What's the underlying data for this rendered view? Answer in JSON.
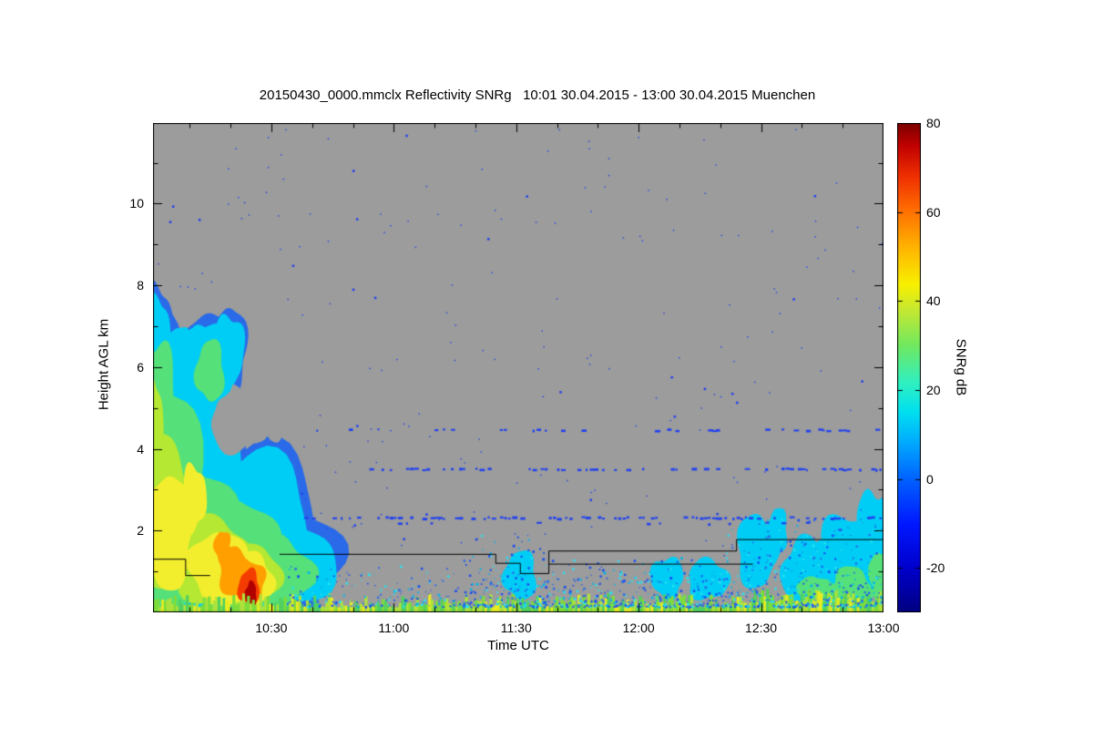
{
  "page": {
    "background": "#ffffff"
  },
  "chart_data": {
    "type": "heatmap",
    "title": "20150430_0000.mmclx Reflectivity SNRg   10:01 30.04.2015 - 13:00 30.04.2015 Muenchen",
    "xlabel": "Time UTC",
    "ylabel": "Height AGL km",
    "plot_bg": "#9c9c9c",
    "x_axis": {
      "start_time": "10:01",
      "end_time": "13:00",
      "tick_labels": [
        "10:30",
        "11:00",
        "11:30",
        "12:00",
        "12:30",
        "13:00"
      ],
      "tick_minutes": [
        29,
        59,
        89,
        119,
        149,
        179
      ],
      "minor_step_min": 10,
      "range_min": [
        0,
        179
      ]
    },
    "y_axis": {
      "tick_values": [
        2,
        4,
        6,
        8,
        10
      ],
      "minor_values": [
        1,
        3,
        5,
        7,
        9,
        11
      ],
      "range_km": [
        0,
        11.97
      ]
    },
    "colorbar": {
      "title": "SNRg dB",
      "tick_values": [
        80,
        60,
        40,
        20,
        0,
        -20
      ],
      "range": [
        -30,
        80
      ],
      "stops": [
        [
          "#000080",
          0
        ],
        [
          "#0000cc",
          0.09
        ],
        [
          "#0018ff",
          0.18
        ],
        [
          "#0060ff",
          0.27
        ],
        [
          "#00a8ff",
          0.345
        ],
        [
          "#00e0f0",
          0.41
        ],
        [
          "#30f0c0",
          0.47
        ],
        [
          "#70e860",
          0.545
        ],
        [
          "#c8e830",
          0.62
        ],
        [
          "#f8f000",
          0.67
        ],
        [
          "#ffb400",
          0.745
        ],
        [
          "#ff7000",
          0.82
        ],
        [
          "#f03000",
          0.89
        ],
        [
          "#c00000",
          0.955
        ],
        [
          "#7a0000",
          1
        ]
      ]
    },
    "features": {
      "seed": 1337,
      "paint": [
        {
          "color": "#2a6ae8",
          "blobs": [
            [
              0,
              3.6,
              15,
              3.9
            ],
            [
              6,
              2.6,
              19,
              2.8
            ],
            [
              10,
              1.6,
              13,
              1.8
            ],
            [
              14,
              5.9,
              7.5,
              1.5
            ],
            [
              18.5,
              6.4,
              4.5,
              1.1
            ],
            [
              23,
              2.0,
              17,
              2.2
            ],
            [
              31,
              1.2,
              15,
              1.4
            ],
            [
              1,
              6.8,
              4,
              1.2
            ]
          ]
        },
        {
          "color": "#00cdf5",
          "blobs": [
            [
              0,
              3.6,
              13.5,
              3.6
            ],
            [
              6,
              2.6,
              17.5,
              2.5
            ],
            [
              10,
              1.6,
              11.5,
              1.55
            ],
            [
              14,
              5.9,
              6.5,
              1.25
            ],
            [
              18.5,
              6.4,
              3.8,
              0.9
            ],
            [
              23,
              2.0,
              15.5,
              1.9
            ],
            [
              31,
              1.2,
              13.5,
              1.15
            ],
            [
              1,
              6.8,
              3.2,
              0.9
            ]
          ]
        },
        {
          "color": "bg",
          "blobs": [
            [
              21,
              4.7,
              7,
              0.8
            ],
            [
              27,
              6.3,
              4,
              1.3
            ],
            [
              30,
              5.0,
              3,
              0.8
            ]
          ]
        },
        {
          "color": "#00cdf5",
          "blobs": [
            [
              13.5,
              5.9,
              5.5,
              1.1
            ],
            [
              17.5,
              6.3,
              3,
              0.8
            ]
          ]
        },
        {
          "color": "#55e07a",
          "blobs": [
            [
              0,
              3.2,
              11,
              3.0
            ],
            [
              7,
              2.0,
              13,
              1.9
            ],
            [
              19,
              1.5,
              11,
              1.35
            ],
            [
              14,
              5.9,
              3.5,
              0.75
            ],
            [
              1,
              5.2,
              4.5,
              1.4
            ],
            [
              29,
              1.0,
              10,
              0.9
            ]
          ]
        },
        {
          "color": "#b4e832",
          "blobs": [
            [
              2,
              2.4,
              8,
              1.9
            ],
            [
              14,
              1.3,
              9,
              1.1
            ],
            [
              24,
              0.9,
              7,
              0.8
            ],
            [
              0,
              4.6,
              2.5,
              1.1
            ]
          ]
        },
        {
          "color": "#f2ee2e",
          "blobs": [
            [
              4,
              2.0,
              6,
              1.4
            ],
            [
              16,
              1.1,
              7,
              0.9
            ],
            [
              24,
              0.8,
              5.5,
              0.65
            ],
            [
              10,
              2.8,
              3,
              0.8
            ]
          ]
        },
        {
          "color": "#ffa000",
          "blobs": [
            [
              20,
              1.0,
              4,
              0.6
            ],
            [
              24,
              0.75,
              3.5,
              0.5
            ],
            [
              17,
              1.6,
              2,
              0.4
            ]
          ]
        },
        {
          "color": "#f53c00",
          "blobs": [
            [
              23.5,
              0.6,
              2.6,
              0.45
            ]
          ]
        },
        {
          "color": "#b00000",
          "blobs": [
            [
              24,
              0.45,
              1.4,
              0.3
            ]
          ]
        },
        {
          "color": "#00cdf5",
          "blobs": [
            [
              148,
              1.5,
              5,
              0.9
            ],
            [
              153,
              2.0,
              2.5,
              0.55
            ],
            [
              160,
              1.0,
              6,
              0.8
            ],
            [
              166,
              1.2,
              4,
              0.8
            ],
            [
              170,
              1.3,
              7,
              1.1
            ],
            [
              176,
              2.1,
              3.5,
              0.9
            ],
            [
              178,
              1.4,
              3,
              1.2
            ],
            [
              126,
              0.85,
              4,
              0.5
            ],
            [
              136,
              0.8,
              5,
              0.5
            ],
            [
              90,
              0.9,
              4,
              0.6
            ]
          ]
        },
        {
          "color": "#55e07a",
          "blobs": [
            [
              171,
              0.6,
              5,
              0.5
            ],
            [
              162,
              0.5,
              4,
              0.4
            ],
            [
              178,
              0.9,
              2.5,
              0.6
            ],
            [
              168,
              0.35,
              8,
              0.35
            ]
          ]
        }
      ],
      "strip_colors": [
        "#7edc3a",
        "#aee23a",
        "#e8ec20",
        "#50d060"
      ],
      "speckle_colors": [
        "#1a4df0",
        "#00b4f0",
        "#29e0f0",
        "#2a6ae8"
      ],
      "speckle_clusters": [
        {
          "t0": 33,
          "t1": 179,
          "hmax": 1.15,
          "per_col": 4
        },
        {
          "t0": 76,
          "t1": 96,
          "hmax": 1.9,
          "per_col": 6
        },
        {
          "t0": 96,
          "t1": 140,
          "hmax": 1.35,
          "per_col": 4
        },
        {
          "t0": 140,
          "t1": 179,
          "hmax": 2.3,
          "per_col": 7
        }
      ],
      "artifact_rows": [
        {
          "h": 4.48,
          "t0": 38,
          "t1": 178,
          "p": 0.22,
          "color": "#2343ee"
        },
        {
          "h": 3.52,
          "t0": 46,
          "t1": 178,
          "p": 0.28,
          "color": "#2343ee"
        },
        {
          "h": 2.33,
          "t0": 36,
          "t1": 178,
          "p": 0.5,
          "color": "#2343ee"
        },
        {
          "h": 2.2,
          "t0": 60,
          "t1": 178,
          "p": 0.12,
          "color": "#2343ee"
        }
      ],
      "scatter": {
        "n": 240,
        "color": "#2343ee"
      },
      "black_lines": [
        [
          [
            0,
            1.3
          ],
          [
            8,
            1.3
          ],
          [
            8,
            0.9
          ],
          [
            14,
            0.9
          ]
        ],
        [
          [
            31,
            1.42
          ],
          [
            84,
            1.42
          ],
          [
            84,
            1.2
          ],
          [
            90,
            1.2
          ],
          [
            90,
            0.95
          ],
          [
            97,
            0.95
          ],
          [
            97,
            1.5
          ],
          [
            143,
            1.5
          ],
          [
            143,
            1.78
          ],
          [
            179,
            1.78
          ]
        ],
        [
          [
            97,
            1.18
          ],
          [
            147,
            1.18
          ]
        ]
      ]
    }
  }
}
